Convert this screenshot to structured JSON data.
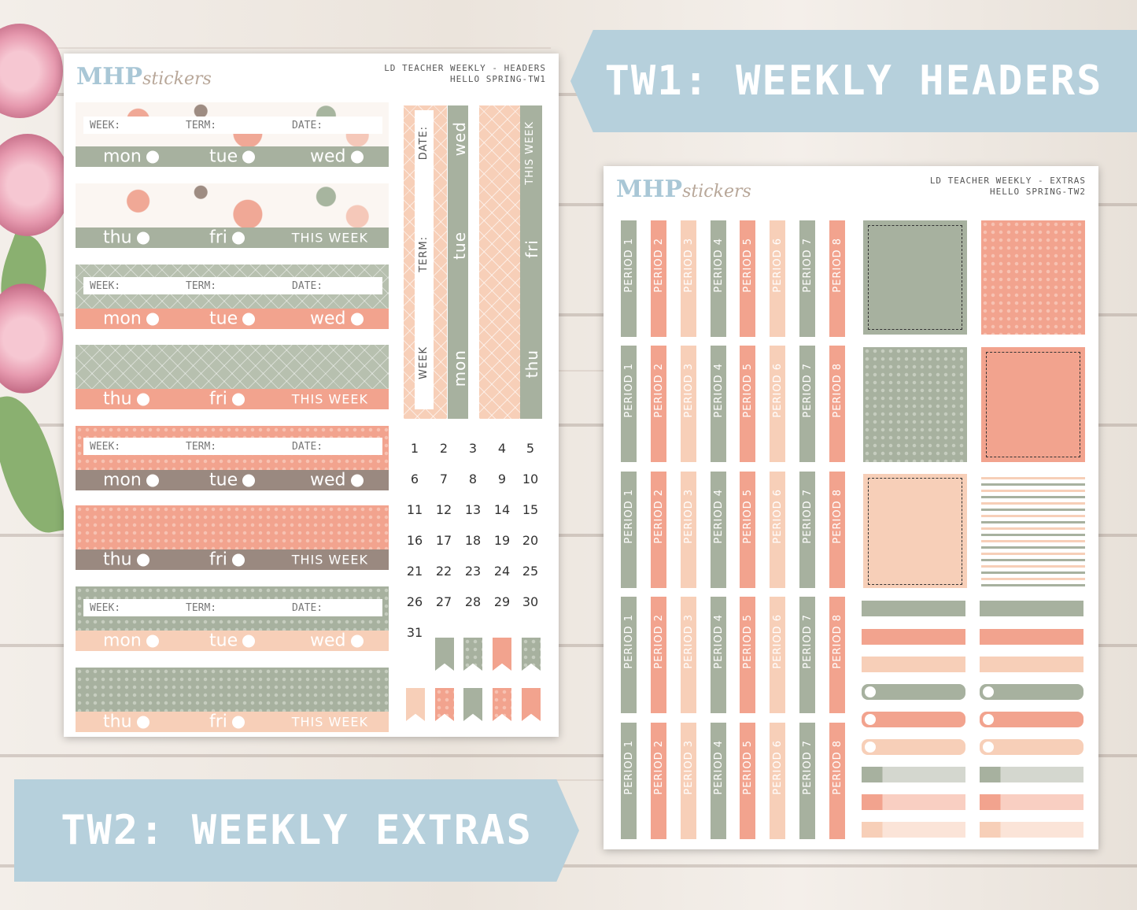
{
  "banner_tw1": "TW1: WEEKLY HEADERS",
  "banner_tw2": "TW2: WEEKLY EXTRAS",
  "logo": {
    "mhp": "MHP",
    "stickers": "stickers"
  },
  "sheet1": {
    "title_line1": "LD TEACHER WEEKLY - HEADERS",
    "title_line2": "HELLO SPRING-TW1",
    "week": "WEEK:",
    "term": "TERM:",
    "date": "DATE:",
    "days": [
      "mon",
      "tue",
      "wed",
      "thu",
      "fri"
    ],
    "this_week": "THIS WEEK",
    "vertical": {
      "date": "DATE:",
      "term": "TERM:",
      "week": "WEEK",
      "wed": "wed",
      "tue": "tue",
      "mon": "mon",
      "this_week": "THIS WEEK",
      "fri": "fri",
      "thu": "thu"
    },
    "calendar": [
      "1",
      "2",
      "3",
      "4",
      "5",
      "6",
      "7",
      "8",
      "9",
      "10",
      "11",
      "12",
      "13",
      "14",
      "15",
      "16",
      "17",
      "18",
      "19",
      "20",
      "21",
      "22",
      "23",
      "24",
      "25",
      "26",
      "27",
      "28",
      "29",
      "30",
      "31"
    ]
  },
  "sheet2": {
    "title_line1": "LD TEACHER WEEKLY - EXTRAS",
    "title_line2": "HELLO SPRING-TW2",
    "periods": [
      "PERIOD 1",
      "PERIOD 2",
      "PERIOD 3",
      "PERIOD 4",
      "PERIOD 5",
      "PERIOD 6",
      "PERIOD 7",
      "PERIOD 8"
    ]
  },
  "colors": {
    "sage": "#a7b19f",
    "salmon": "#f2a38e",
    "peach": "#f7cfb8",
    "taupe": "#9a8980",
    "banner": "#b6d0dc"
  }
}
